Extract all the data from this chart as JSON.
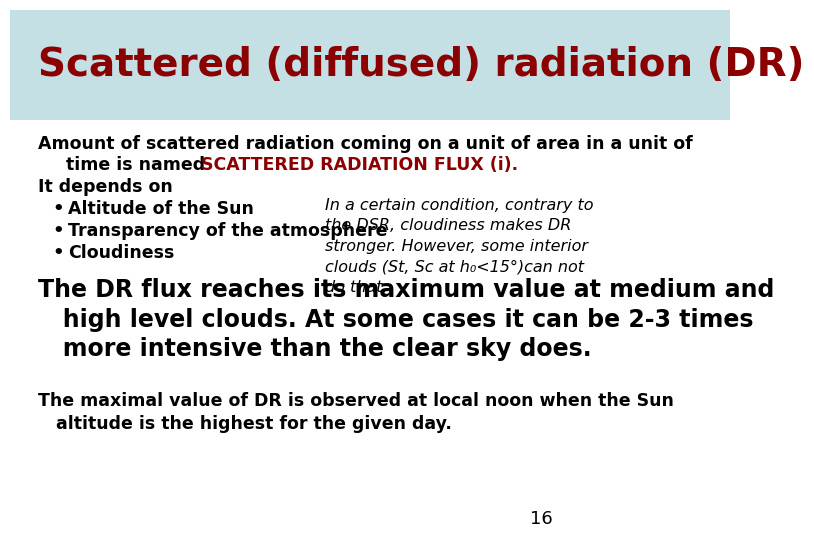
{
  "title": "Scattered (diffused) radiation (DR)",
  "title_color": "#8B0000",
  "title_bg_color": "#C5E0E5",
  "slide_bg_color": "#FFFFFF",
  "page_number": "16",
  "line1": "Amount of scattered radiation coming on a unit of area in a unit of",
  "line2_black": "time is named ",
  "line2_red": "SCATTERED RADIATION FLUX (i).",
  "line3": "It depends on",
  "bullets": [
    "Altitude of the Sun",
    "Transparency of the atmosphere",
    "Cloudiness"
  ],
  "italic_text": "In a certain condition, contrary to\nthe DSR, cloudiness makes DR\nstronger. However, some interior\nclouds (St, Sc at h₀<15°)can not\ndo that.",
  "large_line1": "The DR flux reaches its maximum value at medium and",
  "large_line2": "   high level clouds. At some cases it can be 2-3 times",
  "large_line3": "   more intensive than the clear sky does.",
  "footer_line1": "The maximal value of DR is observed at local noon when the Sun",
  "footer_line2": "   altitude is the highest for the given day."
}
